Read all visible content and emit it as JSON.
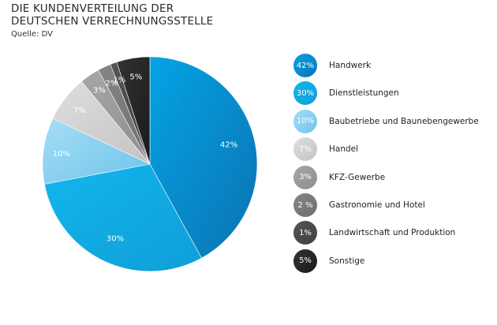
{
  "header": {
    "title_line1": "DIE KUNDENVERTEILUNG DER",
    "title_line2": "DEUTSCHEN VERRECHNUNGSSTELLE",
    "source": "Quelle: DV"
  },
  "chart_data": {
    "type": "pie",
    "title": "DIE KUNDENVERTEILUNG DER DEUTSCHEN VERRECHNUNGSSTELLE",
    "slices": [
      {
        "name": "Handwerk",
        "value": 42,
        "label": "42%",
        "legend_label": "42%",
        "color": "#0a8fd1",
        "gradient_light": "#05a3e4",
        "gradient_dark": "#0a73b3"
      },
      {
        "name": "Dienstleistungen",
        "value": 30,
        "label": "30%",
        "legend_label": "30%",
        "color": "#12a9e2",
        "gradient_light": "#12b6ec",
        "gradient_dark": "#109ed8"
      },
      {
        "name": "Baubetriebe und Baunebengewerbe",
        "value": 10,
        "label": "10%",
        "legend_label": "10%",
        "color": "#86cff0",
        "gradient_light": "#a6ddf5",
        "gradient_dark": "#6ec4ec"
      },
      {
        "name": "Handel",
        "value": 7,
        "label": "7%",
        "legend_label": "7%",
        "color": "#cfcfcf",
        "gradient_light": "#dedede",
        "gradient_dark": "#c3c3c3"
      },
      {
        "name": "KFZ-Gewerbe",
        "value": 3,
        "label": "3%",
        "legend_label": "3%",
        "color": "#9b9b9b",
        "gradient_light": "#a7a7a7",
        "gradient_dark": "#8e8e8e"
      },
      {
        "name": "Gastronomie und Hotel",
        "value": 2,
        "label": "2%",
        "legend_label": "2 %",
        "color": "#7a7a7a",
        "gradient_light": "#858585",
        "gradient_dark": "#6f6f6f"
      },
      {
        "name": "Landwirtschaft und Produktion",
        "value": 1,
        "label": "1%",
        "legend_label": "1%",
        "color": "#4a4a4a",
        "gradient_light": "#555555",
        "gradient_dark": "#3f3f3f"
      },
      {
        "name": "Sonstige",
        "value": 5,
        "label": "5%",
        "legend_label": "5%",
        "color": "#262626",
        "gradient_light": "#333333",
        "gradient_dark": "#1a1a1a"
      }
    ]
  }
}
